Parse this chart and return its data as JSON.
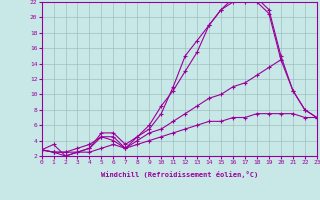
{
  "title": "",
  "xlabel": "Windchill (Refroidissement éolien,°C)",
  "bg_color": "#c8e8e8",
  "line_color": "#990099",
  "grid_color": "#a0c0c0",
  "xlim": [
    0,
    23
  ],
  "ylim": [
    2,
    22
  ],
  "xticks": [
    0,
    1,
    2,
    3,
    4,
    5,
    6,
    7,
    8,
    9,
    10,
    11,
    12,
    13,
    14,
    15,
    16,
    17,
    18,
    19,
    20,
    21,
    22,
    23
  ],
  "yticks": [
    2,
    4,
    6,
    8,
    10,
    12,
    14,
    16,
    18,
    20,
    22
  ],
  "lines": [
    {
      "x": [
        0,
        1,
        2,
        3,
        4,
        5,
        6,
        7,
        8,
        9,
        10,
        11,
        12,
        13,
        14,
        15,
        16,
        17,
        18,
        19,
        20,
        21,
        22,
        23
      ],
      "y": [
        2.8,
        3.5,
        2.0,
        2.5,
        3.0,
        5.0,
        5.0,
        3.5,
        4.5,
        5.5,
        7.5,
        11.0,
        15.0,
        17.0,
        19.0,
        21.0,
        22.0,
        22.0,
        22.0,
        20.5,
        14.5,
        null,
        null,
        null
      ]
    },
    {
      "x": [
        0,
        1,
        2,
        3,
        4,
        5,
        6,
        7,
        8,
        9,
        10,
        11,
        12,
        13,
        14,
        15,
        16,
        17,
        18,
        19,
        20,
        21,
        22,
        23
      ],
      "y": [
        2.8,
        2.5,
        2.0,
        2.5,
        3.0,
        4.5,
        4.5,
        3.0,
        4.5,
        6.0,
        8.5,
        10.5,
        13.0,
        15.5,
        19.0,
        21.0,
        22.5,
        22.5,
        22.5,
        21.0,
        15.0,
        10.5,
        8.0,
        7.0
      ]
    },
    {
      "x": [
        0,
        1,
        2,
        3,
        4,
        5,
        6,
        7,
        8,
        9,
        10,
        11,
        12,
        13,
        14,
        15,
        16,
        17,
        18,
        19,
        20,
        21,
        22,
        23
      ],
      "y": [
        2.8,
        2.5,
        2.5,
        3.0,
        3.5,
        4.5,
        4.0,
        3.0,
        4.0,
        5.0,
        5.5,
        6.5,
        7.5,
        8.5,
        9.5,
        10.0,
        11.0,
        11.5,
        12.5,
        13.5,
        14.5,
        10.5,
        8.0,
        7.0
      ]
    },
    {
      "x": [
        0,
        1,
        2,
        3,
        4,
        5,
        6,
        7,
        8,
        9,
        10,
        11,
        12,
        13,
        14,
        15,
        16,
        17,
        18,
        19,
        20,
        21,
        22,
        23
      ],
      "y": [
        2.8,
        2.5,
        2.5,
        2.5,
        2.5,
        3.0,
        3.5,
        3.0,
        3.5,
        4.0,
        4.5,
        5.0,
        5.5,
        6.0,
        6.5,
        6.5,
        7.0,
        7.0,
        7.5,
        7.5,
        7.5,
        7.5,
        7.0,
        7.0
      ]
    }
  ]
}
